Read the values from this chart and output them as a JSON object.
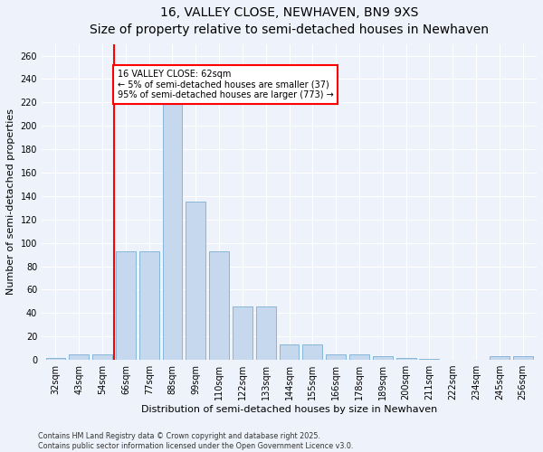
{
  "title": "16, VALLEY CLOSE, NEWHAVEN, BN9 9XS",
  "subtitle": "Size of property relative to semi-detached houses in Newhaven",
  "xlabel": "Distribution of semi-detached houses by size in Newhaven",
  "ylabel": "Number of semi-detached properties",
  "categories": [
    "32sqm",
    "43sqm",
    "54sqm",
    "66sqm",
    "77sqm",
    "88sqm",
    "99sqm",
    "110sqm",
    "122sqm",
    "133sqm",
    "144sqm",
    "155sqm",
    "166sqm",
    "178sqm",
    "189sqm",
    "200sqm",
    "211sqm",
    "222sqm",
    "234sqm",
    "245sqm",
    "256sqm"
  ],
  "values": [
    2,
    5,
    5,
    93,
    93,
    220,
    135,
    93,
    46,
    46,
    13,
    13,
    5,
    5,
    3,
    2,
    1,
    0,
    0,
    3,
    3
  ],
  "bar_color": "#c5d8ed",
  "bar_edge_color": "#7aafd4",
  "vline_x": 2.5,
  "vline_color": "red",
  "annotation_text": "16 VALLEY CLOSE: 62sqm\n← 5% of semi-detached houses are smaller (37)\n95% of semi-detached houses are larger (773) →",
  "annotation_box_color": "white",
  "annotation_box_edge": "red",
  "ylim": [
    0,
    270
  ],
  "yticks": [
    0,
    20,
    40,
    60,
    80,
    100,
    120,
    140,
    160,
    180,
    200,
    220,
    240,
    260
  ],
  "footer1": "Contains HM Land Registry data © Crown copyright and database right 2025.",
  "footer2": "Contains public sector information licensed under the Open Government Licence v3.0.",
  "bg_color": "#eef2fa",
  "plot_bg_color": "#eef2fa",
  "grid_color": "#ffffff",
  "title_fontsize": 10,
  "subtitle_fontsize": 8.5,
  "ylabel_fontsize": 8,
  "xlabel_fontsize": 8,
  "tick_fontsize": 7,
  "footer_fontsize": 5.8
}
